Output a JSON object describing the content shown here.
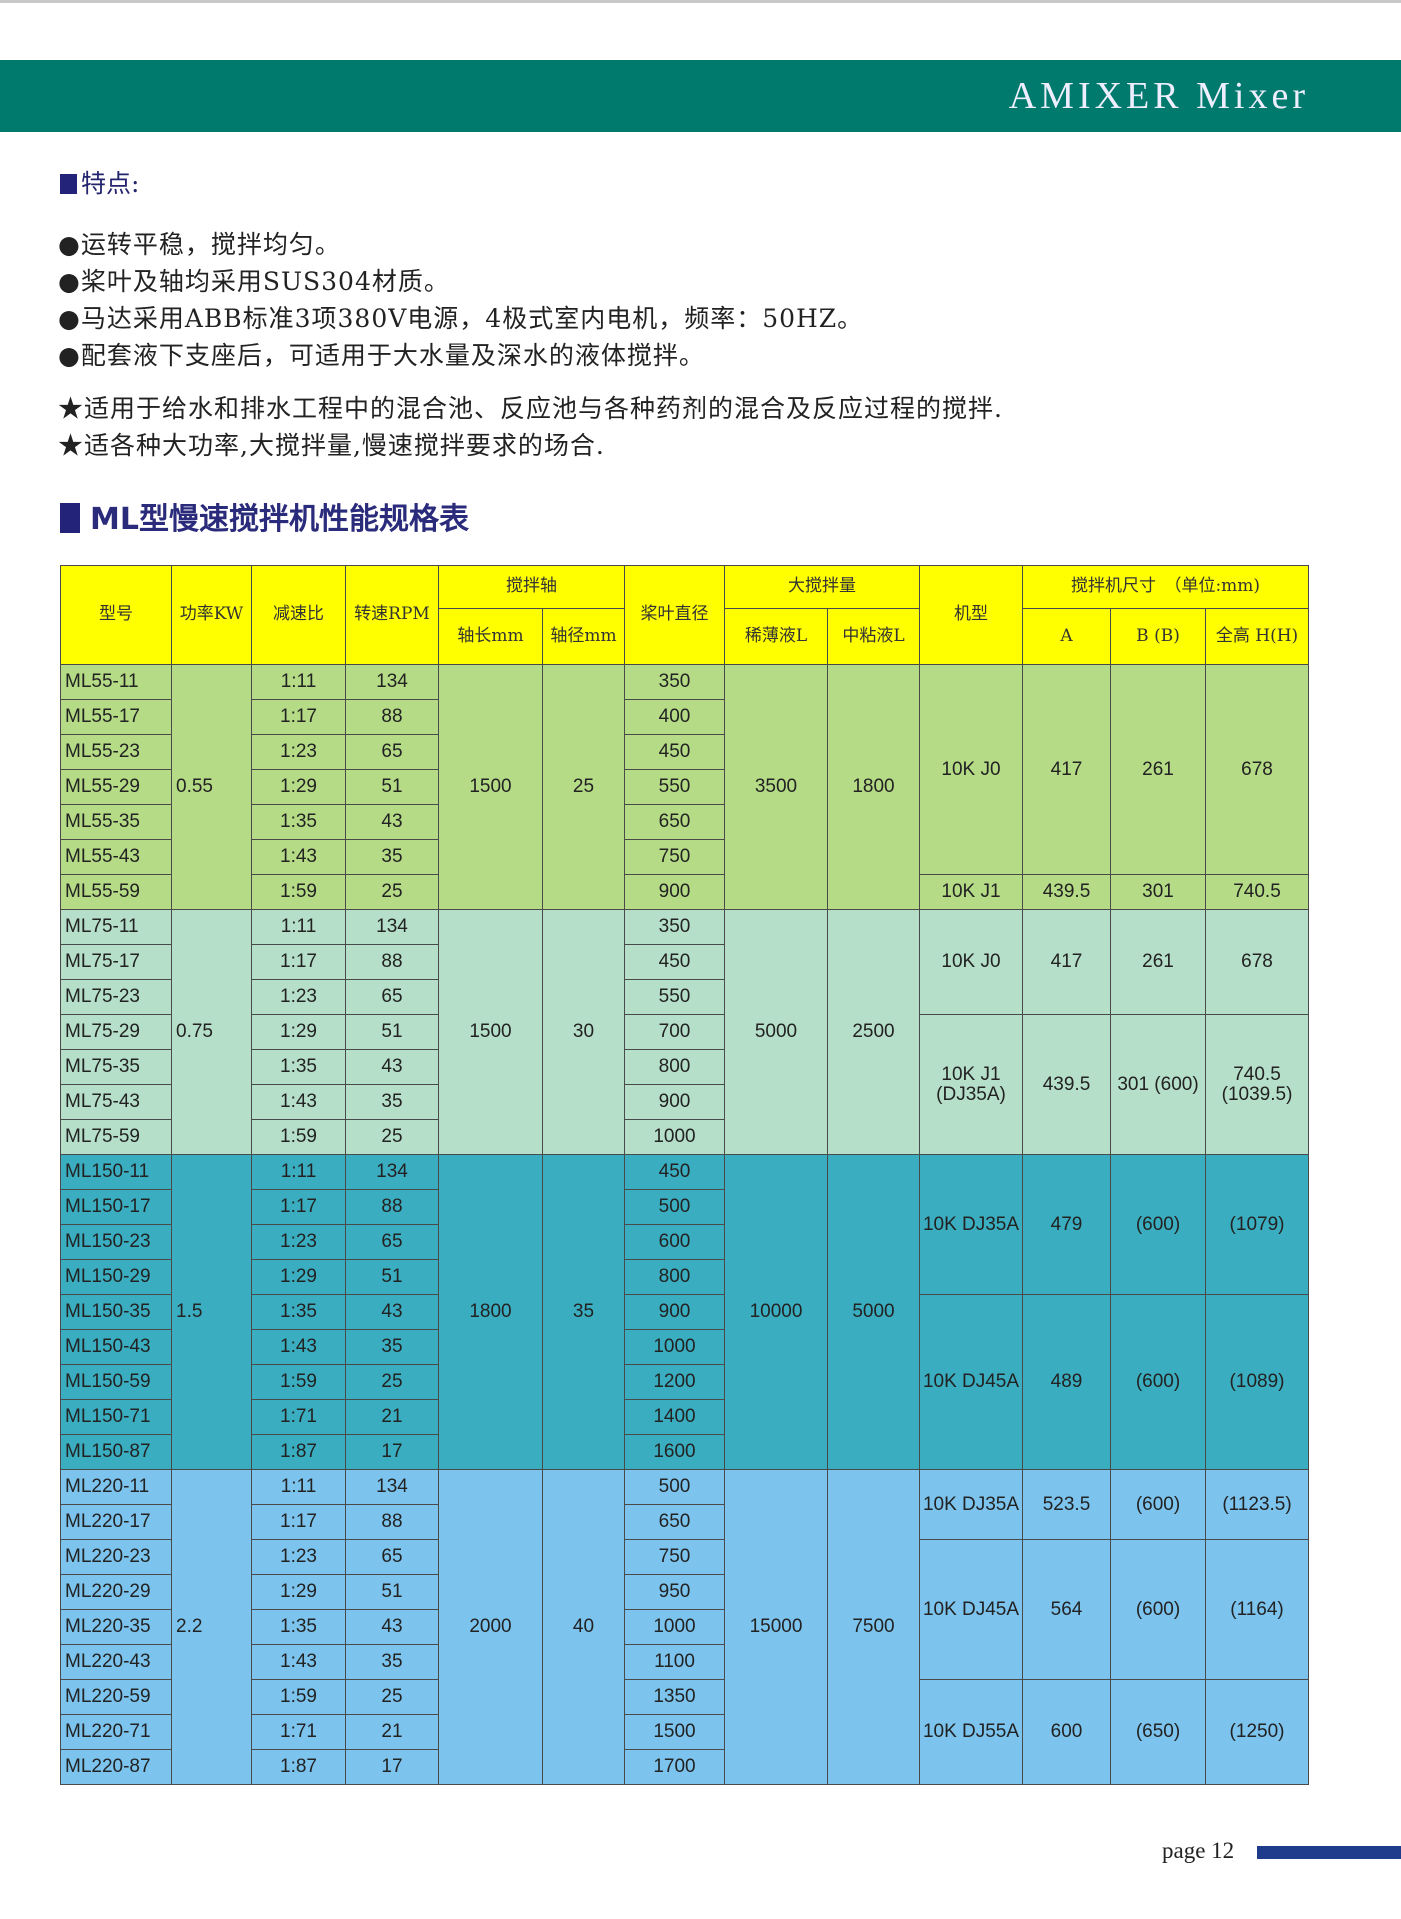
{
  "header": {
    "title": "AMIXER Mixer"
  },
  "features": {
    "heading": "特点:",
    "bullets": [
      "●运转平稳，搅拌均匀。",
      "●桨叶及轴均采用SUS304材质。",
      "●马达采用ABB标准3项380V电源，4极式室内电机，频率：50HZ。",
      "●配套液下支座后，可适用于大水量及深水的液体搅拌。"
    ],
    "stars": [
      "★适用于给水和排水工程中的混合池、反应池与各种药剂的混合及反应过程的搅拌.",
      "★适各种大功率,大搅拌量,慢速搅拌要求的场合."
    ]
  },
  "section_title": "ML型慢速搅拌机性能规格表",
  "table": {
    "headers": {
      "model": "型号",
      "power": "功率KW",
      "ratio": "减速比",
      "rpm": "转速RPM",
      "shaft": "搅拌轴",
      "shaft_length": "轴长mm",
      "shaft_dia": "轴径mm",
      "blade": "桨叶直径",
      "capacity": "大搅拌量",
      "thin": "稀薄液L",
      "medium": "中粘液L",
      "machine": "机型",
      "dims": "搅拌机尺寸　（单位:mm)",
      "a": "A",
      "b": "B (B)",
      "h": "全高 H(H)"
    },
    "header_color": "#ffff00",
    "groups": [
      {
        "color": "#b5db86",
        "power": "0.55",
        "shaft_length": "1500",
        "shaft_dia": "25",
        "thin": "3500",
        "medium": "1800",
        "rows": [
          [
            "ML55-11",
            "1:11",
            "134",
            "350"
          ],
          [
            "ML55-17",
            "1:17",
            "88",
            "400"
          ],
          [
            "ML55-23",
            "1:23",
            "65",
            "450"
          ],
          [
            "ML55-29",
            "1:29",
            "51",
            "550"
          ],
          [
            "ML55-35",
            "1:35",
            "43",
            "650"
          ],
          [
            "ML55-43",
            "1:43",
            "35",
            "750"
          ],
          [
            "ML55-59",
            "1:59",
            "25",
            "900"
          ]
        ],
        "machines": [
          {
            "type": "10K J0",
            "a": "417",
            "b": "261",
            "h": "678",
            "rows": 6
          },
          {
            "type": "10K J1",
            "a": "439.5",
            "b": "301",
            "h": "740.5",
            "rows": 1
          }
        ]
      },
      {
        "color": "#b5dfc9",
        "power": "0.75",
        "shaft_length": "1500",
        "shaft_dia": "30",
        "thin": "5000",
        "medium": "2500",
        "rows": [
          [
            "ML75-11",
            "1:11",
            "134",
            "350"
          ],
          [
            "ML75-17",
            "1:17",
            "88",
            "450"
          ],
          [
            "ML75-23",
            "1:23",
            "65",
            "550"
          ],
          [
            "ML75-29",
            "1:29",
            "51",
            "700"
          ],
          [
            "ML75-35",
            "1:35",
            "43",
            "800"
          ],
          [
            "ML75-43",
            "1:43",
            "35",
            "900"
          ],
          [
            "ML75-59",
            "1:59",
            "25",
            "1000"
          ]
        ],
        "machines": [
          {
            "type": "10K J0",
            "a": "417",
            "b": "261",
            "h": "678",
            "rows": 3
          },
          {
            "type": "10K J1 (DJ35A)",
            "a": "439.5",
            "b": "301 (600)",
            "h": "740.5 (1039.5)",
            "rows": 4
          }
        ]
      },
      {
        "color": "#3aaec0",
        "power": "1.5",
        "shaft_length": "1800",
        "shaft_dia": "35",
        "thin": "10000",
        "medium": "5000",
        "rows": [
          [
            "ML150-11",
            "1:11",
            "134",
            "450"
          ],
          [
            "ML150-17",
            "1:17",
            "88",
            "500"
          ],
          [
            "ML150-23",
            "1:23",
            "65",
            "600"
          ],
          [
            "ML150-29",
            "1:29",
            "51",
            "800"
          ],
          [
            "ML150-35",
            "1:35",
            "43",
            "900"
          ],
          [
            "ML150-43",
            "1:43",
            "35",
            "1000"
          ],
          [
            "ML150-59",
            "1:59",
            "25",
            "1200"
          ],
          [
            "ML150-71",
            "1:71",
            "21",
            "1400"
          ],
          [
            "ML150-87",
            "1:87",
            "17",
            "1600"
          ]
        ],
        "machines": [
          {
            "type": "10K DJ35A",
            "a": "479",
            "b": "(600)",
            "h": "(1079)",
            "rows": 4
          },
          {
            "type": "10K DJ45A",
            "a": "489",
            "b": "(600)",
            "h": "(1089)",
            "rows": 5
          }
        ]
      },
      {
        "color": "#7cc4ee",
        "power": "2.2",
        "shaft_length": "2000",
        "shaft_dia": "40",
        "thin": "15000",
        "medium": "7500",
        "rows": [
          [
            "ML220-11",
            "1:11",
            "134",
            "500"
          ],
          [
            "ML220-17",
            "1:17",
            "88",
            "650"
          ],
          [
            "ML220-23",
            "1:23",
            "65",
            "750"
          ],
          [
            "ML220-29",
            "1:29",
            "51",
            "950"
          ],
          [
            "ML220-35",
            "1:35",
            "43",
            "1000"
          ],
          [
            "ML220-43",
            "1:43",
            "35",
            "1100"
          ],
          [
            "ML220-59",
            "1:59",
            "25",
            "1350"
          ],
          [
            "ML220-71",
            "1:71",
            "21",
            "1500"
          ],
          [
            "ML220-87",
            "1:87",
            "17",
            "1700"
          ]
        ],
        "machines": [
          {
            "type": "10K DJ35A",
            "a": "523.5",
            "b": "(600)",
            "h": "(1123.5)",
            "rows": 2
          },
          {
            "type": "10K DJ45A",
            "a": "564",
            "b": "(600)",
            "h": "(1164)",
            "rows": 4
          },
          {
            "type": "10K DJ55A",
            "a": "600",
            "b": "(650)",
            "h": "(1250)",
            "rows": 3
          }
        ]
      }
    ]
  },
  "footer": {
    "page_label": "page 12"
  }
}
